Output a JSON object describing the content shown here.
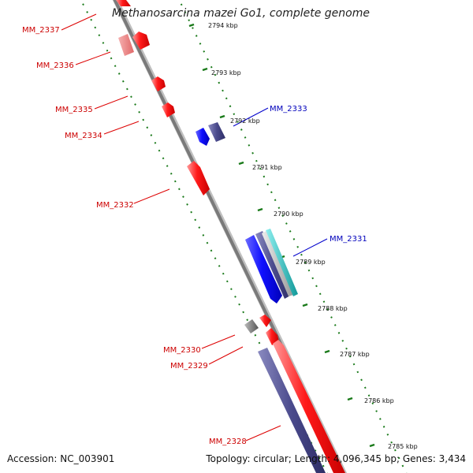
{
  "title": "Methanosarcina mazei Go1, complete genome",
  "footer": {
    "accession": "Accession: NC_003901",
    "summary": "Topology: circular; Length: 4,096,345 bp; Genes: 3,434"
  },
  "colors": {
    "forward": "#ff0000",
    "forward_light": "#ee7777",
    "reverse": "#0000ff",
    "reverse_dark": "#4a4a8c",
    "cyan": "#22cccc",
    "other": "#777777",
    "tick": "#1a7a1a",
    "label_forward": "#cc0000",
    "label_reverse": "#0000bb"
  },
  "ticks": [
    {
      "label": "2794 kbp"
    },
    {
      "label": "2793 kbp"
    },
    {
      "label": "2792 kbp"
    },
    {
      "label": "2791 kbp"
    },
    {
      "label": "2790 kbp"
    },
    {
      "label": "2789 kbp"
    },
    {
      "label": "2788 kbp"
    },
    {
      "label": "2787 kbp"
    },
    {
      "label": "2786 kbp"
    },
    {
      "label": "2785 kbp"
    }
  ],
  "gene_labels": [
    {
      "name": "MM_2337",
      "strand": "forward"
    },
    {
      "name": "MM_2336",
      "strand": "forward"
    },
    {
      "name": "MM_2335",
      "strand": "forward"
    },
    {
      "name": "MM_2334",
      "strand": "forward"
    },
    {
      "name": "MM_2333",
      "strand": "reverse"
    },
    {
      "name": "MM_2332",
      "strand": "forward"
    },
    {
      "name": "MM_2331",
      "strand": "reverse"
    },
    {
      "name": "MM_2330",
      "strand": "forward"
    },
    {
      "name": "MM_2329",
      "strand": "forward"
    },
    {
      "name": "MM_2328",
      "strand": "forward"
    }
  ]
}
